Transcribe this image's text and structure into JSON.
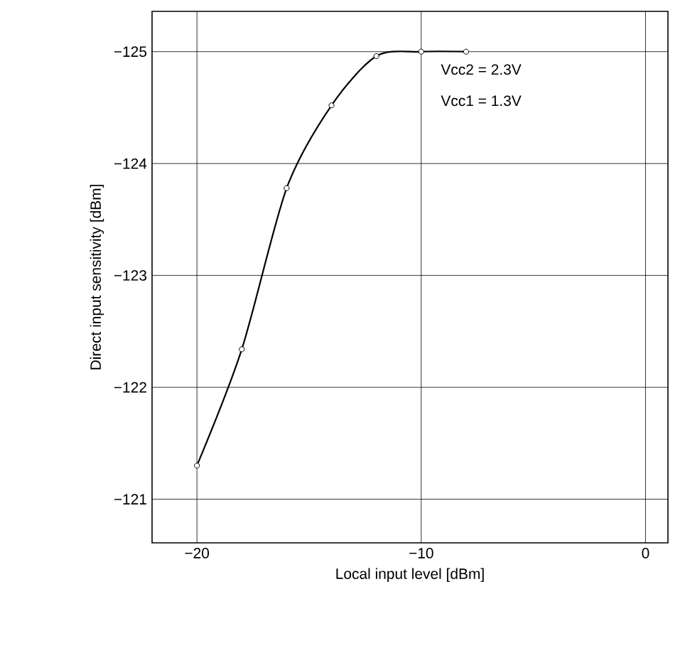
{
  "chart_data": {
    "type": "line",
    "xlabel": "Local input level [dBm]",
    "ylabel": "Direct input sensitivity [dBm]",
    "x": [
      -20,
      -18,
      -16,
      -14,
      -12,
      -10,
      -8
    ],
    "series": [
      {
        "color": "#000000",
        "values": [
          -121.3,
          -122.34,
          -123.78,
          -124.52,
          -124.96,
          -125,
          -125
        ]
      }
    ],
    "xlim": [
      -22,
      1
    ],
    "ylim": [
      -120.61,
      -125.36
    ],
    "xticks": [
      {
        "value": -20,
        "label": "−20"
      },
      {
        "value": -10,
        "label": "−10"
      },
      0
    ],
    "yticks": [
      {
        "value": -121,
        "label": "−121"
      },
      {
        "value": -122,
        "label": "−122"
      },
      {
        "value": -123,
        "label": "−123"
      },
      {
        "value": -124,
        "label": "−124"
      },
      {
        "value": -125,
        "label": "−125"
      }
    ],
    "grid": true,
    "marker": "circle",
    "line_style": "solid",
    "annotations": [
      "Vcc2 = 2.3V",
      "Vcc1 = 1.3V"
    ]
  }
}
